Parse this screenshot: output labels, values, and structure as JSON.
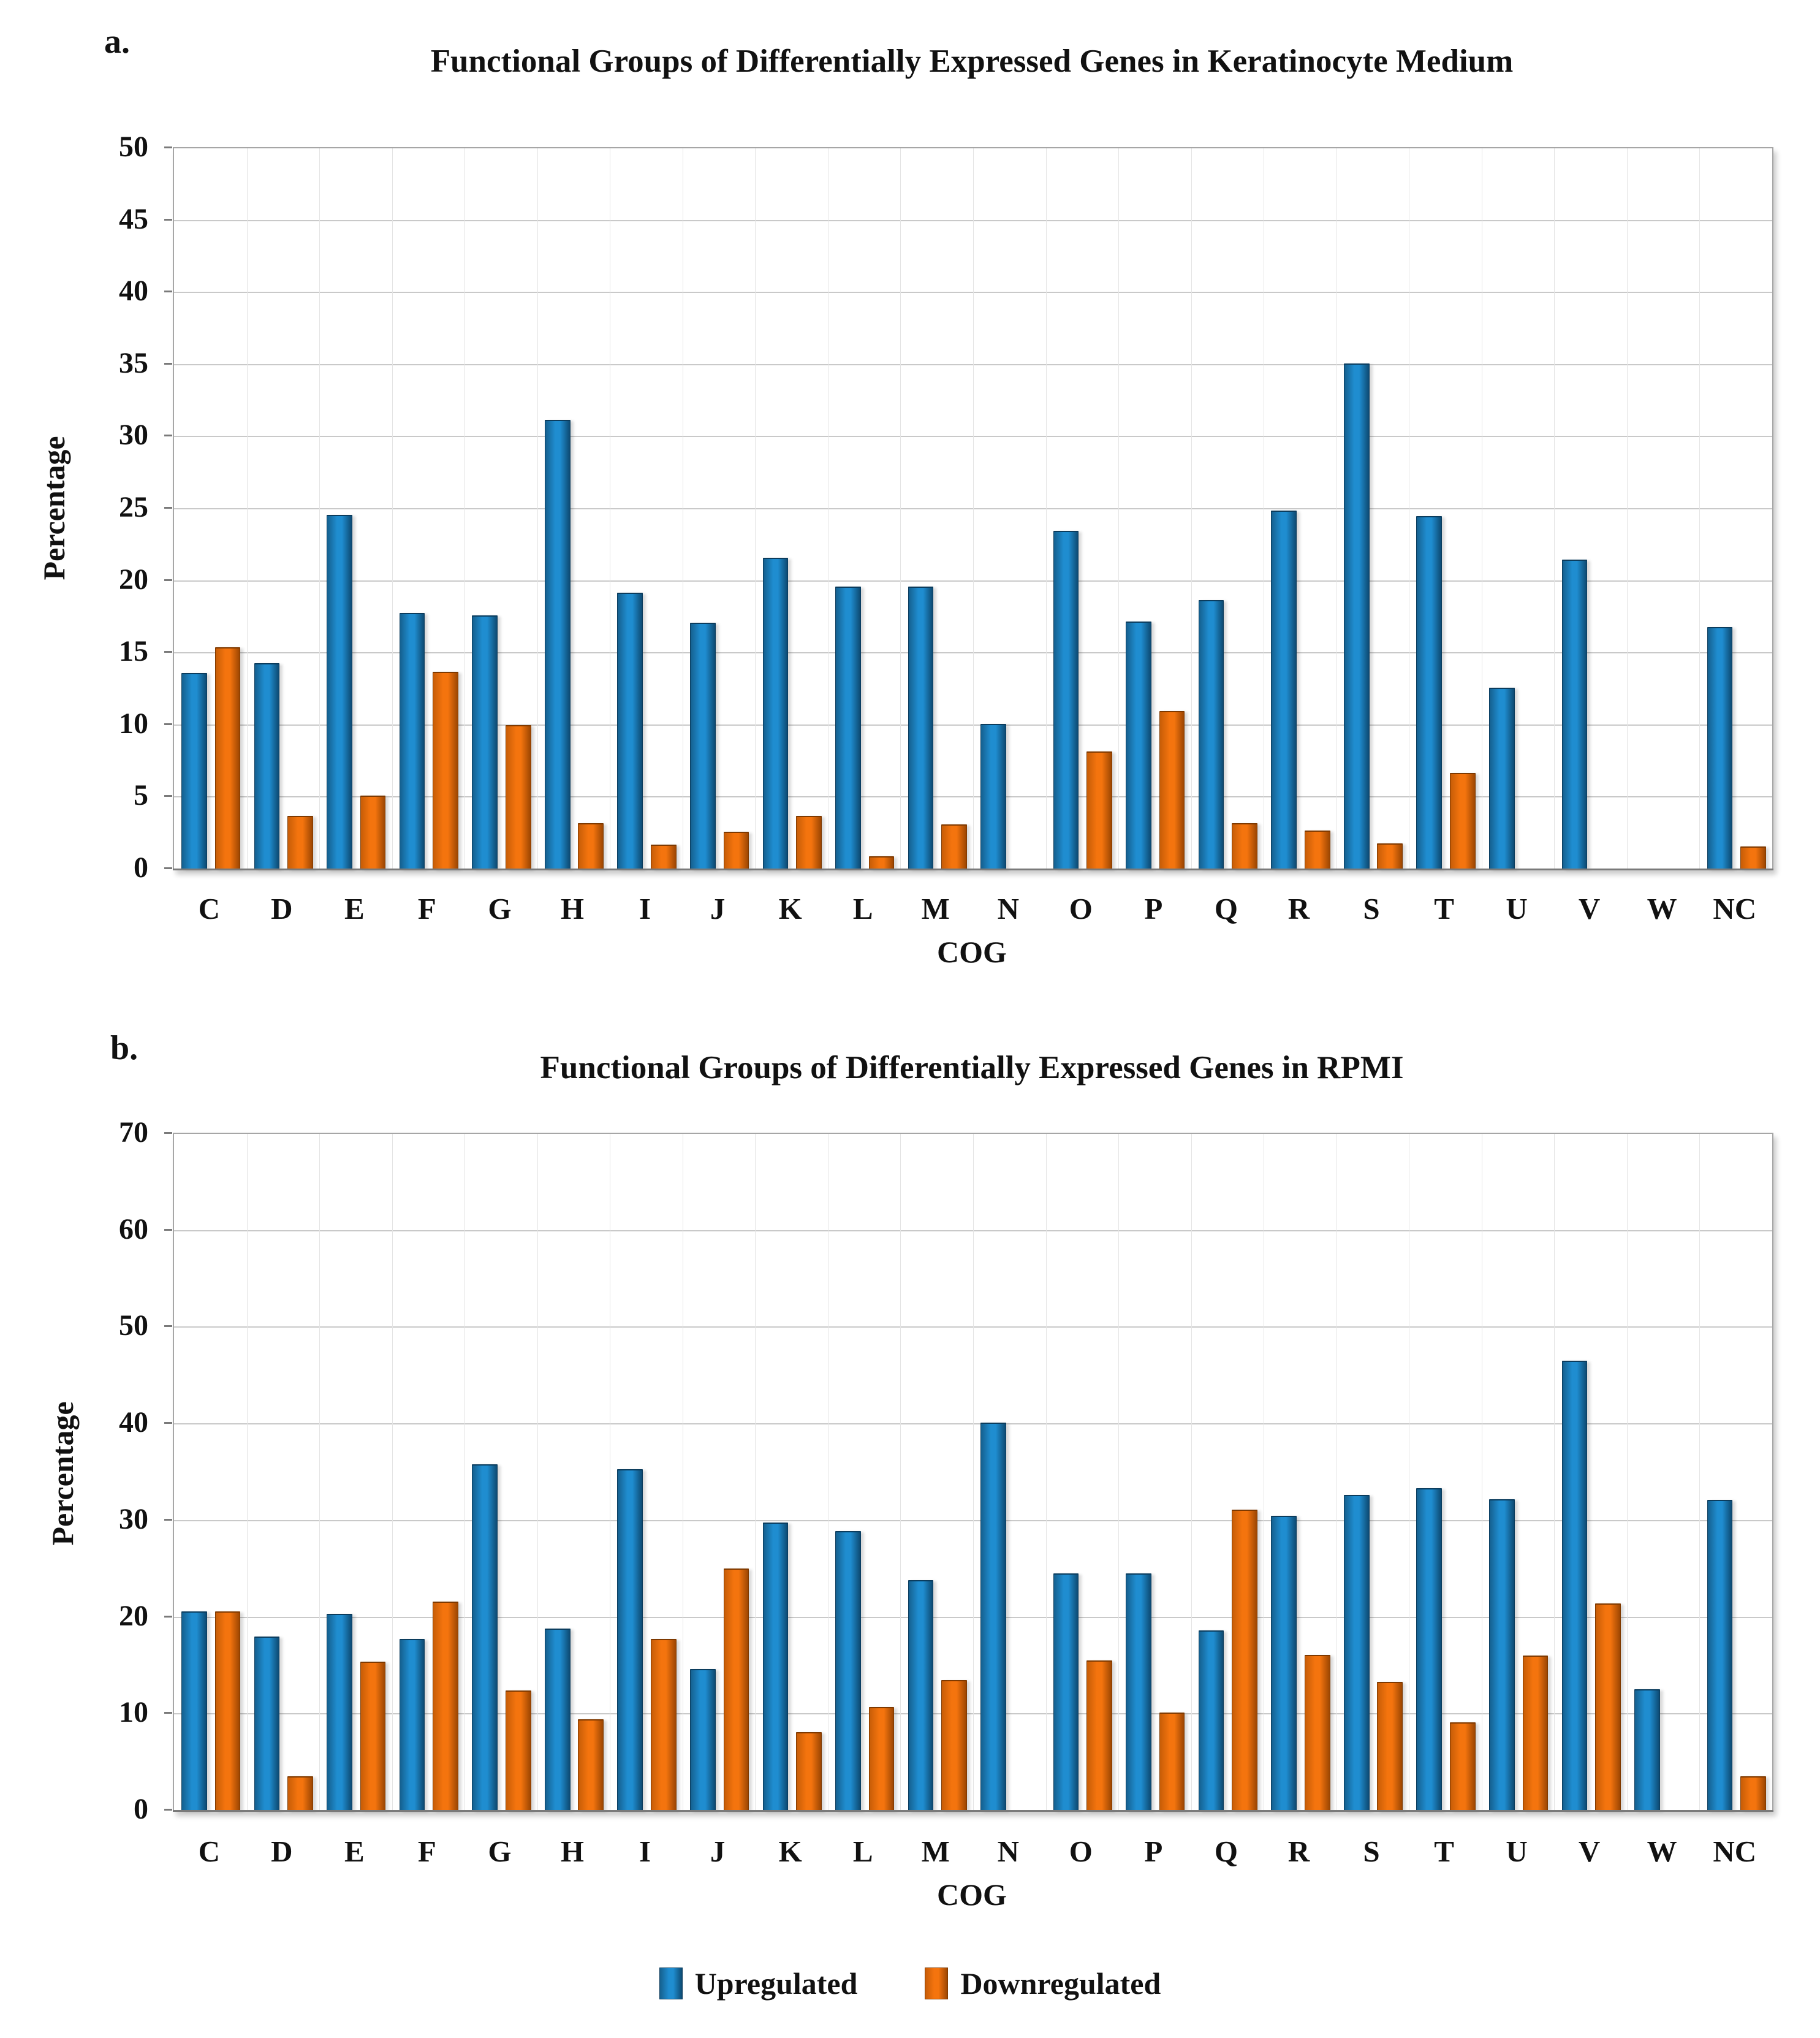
{
  "panels": {
    "a_label": "a.",
    "b_label": "b."
  },
  "axis": {
    "xlabel": "COG",
    "ylabel": "Percentage"
  },
  "legend": {
    "position": "bottom",
    "items": [
      {
        "label": "Upregulated",
        "series": "up"
      },
      {
        "label": "Downregulated",
        "series": "down"
      }
    ]
  },
  "colors": {
    "up_edge_left": "#15608f",
    "up_center": "#1f8dd0",
    "up_edge_right": "#0d4a72",
    "up_border": "#0b3c5d",
    "down_edge_left": "#c75d07",
    "down_center": "#f4740e",
    "down_edge_right": "#9c4602",
    "down_border": "#7e3900",
    "gridline": "#c9c9c9",
    "plot_border": "#a6a6a6",
    "axis_line": "#7a7a7a",
    "text": "#111111"
  },
  "chart_data": [
    {
      "type": "bar",
      "title": "Functional Groups of Differentially Expressed Genes in Keratinocyte Medium",
      "xlabel": "COG",
      "ylabel": "Percentage",
      "ylim": [
        0,
        50
      ],
      "ytick_step": 5,
      "grid": true,
      "legend_position": "bottom",
      "categories": [
        "C",
        "D",
        "E",
        "F",
        "G",
        "H",
        "I",
        "J",
        "K",
        "L",
        "M",
        "N",
        "O",
        "P",
        "Q",
        "R",
        "S",
        "T",
        "U",
        "V",
        "W",
        "NC"
      ],
      "series": [
        {
          "name": "Upregulated",
          "values": [
            13.5,
            14.2,
            24.5,
            17.7,
            17.5,
            31.1,
            19.1,
            17.0,
            21.5,
            19.5,
            19.5,
            10.0,
            23.4,
            17.1,
            18.6,
            24.8,
            35.0,
            24.4,
            12.5,
            21.4,
            0,
            16.7
          ]
        },
        {
          "name": "Downregulated",
          "values": [
            15.3,
            3.6,
            5.0,
            13.6,
            9.9,
            3.1,
            1.6,
            2.5,
            3.6,
            0.8,
            3.0,
            0,
            8.1,
            10.9,
            3.1,
            2.6,
            1.7,
            6.6,
            0,
            0,
            0,
            1.5
          ]
        }
      ]
    },
    {
      "type": "bar",
      "title": "Functional Groups of Differentially Expressed Genes in RPMI",
      "xlabel": "COG",
      "ylabel": "Percentage",
      "ylim": [
        0,
        70
      ],
      "ytick_step": 10,
      "grid": true,
      "legend_position": "bottom",
      "categories": [
        "C",
        "D",
        "E",
        "F",
        "G",
        "H",
        "I",
        "J",
        "K",
        "L",
        "M",
        "N",
        "O",
        "P",
        "Q",
        "R",
        "S",
        "T",
        "U",
        "V",
        "W",
        "NC"
      ],
      "series": [
        {
          "name": "Upregulated",
          "values": [
            20.5,
            17.9,
            20.2,
            17.6,
            35.7,
            18.7,
            35.2,
            14.5,
            29.7,
            28.8,
            23.7,
            40.0,
            24.4,
            24.4,
            18.5,
            30.4,
            32.5,
            33.2,
            32.1,
            46.4,
            12.4,
            32.0
          ]
        },
        {
          "name": "Downregulated",
          "values": [
            20.5,
            3.4,
            15.3,
            21.5,
            12.3,
            9.3,
            17.6,
            24.9,
            8.0,
            10.6,
            13.4,
            0,
            15.4,
            10.0,
            31.0,
            16.0,
            13.2,
            9.0,
            15.9,
            21.3,
            0,
            3.4
          ]
        }
      ]
    }
  ]
}
